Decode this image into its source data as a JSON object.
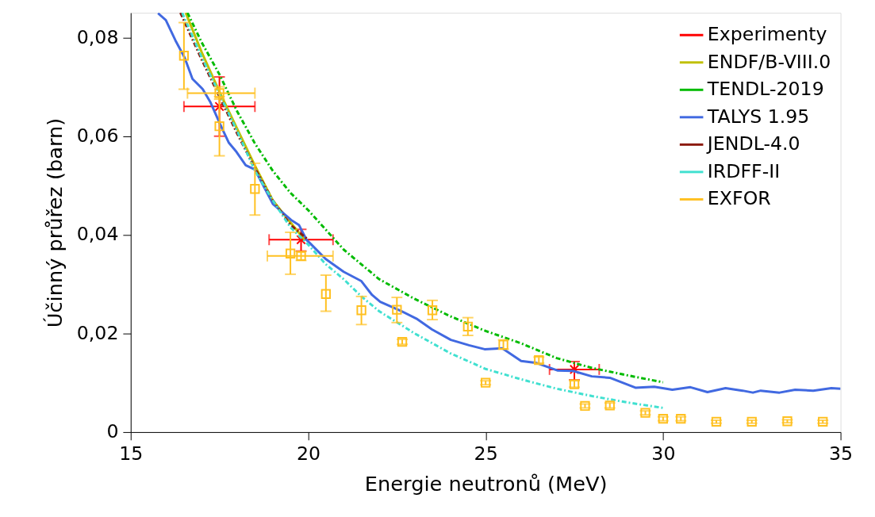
{
  "chart_data": {
    "type": "line",
    "xlabel": "Energie neutronů (MeV)",
    "ylabel": "Účinný průřez (barn)",
    "xlim": [
      15,
      35
    ],
    "ylim": [
      0,
      0.085
    ],
    "xticks": [
      15,
      20,
      25,
      30,
      35
    ],
    "yticks": [
      0,
      {
        "value": 0.02,
        "label": "0,02"
      },
      {
        "value": 0.04,
        "label": "0,04"
      },
      {
        "value": 0.06,
        "label": "0,06"
      },
      {
        "value": 0.08,
        "label": "0,08"
      }
    ],
    "legend": "top right",
    "series": [
      {
        "name": "Experimenty",
        "type": "scatter",
        "marker": "cross",
        "color": "#ff0000",
        "x": [
          17.5,
          19.8,
          27.5
        ],
        "values": [
          0.066,
          0.039,
          0.0127
        ],
        "errors": [
          [
            0.06,
            0.072
          ],
          [
            0.0367,
            0.0411
          ],
          [
            0.0106,
            0.0143
          ]
        ],
        "xerrors": [
          [
            16.5,
            18.5
          ],
          [
            18.9,
            20.7
          ],
          [
            26.8,
            28.2
          ]
        ]
      },
      {
        "name": "ENDF/B-VIII.0",
        "line_style": "solid",
        "color": "#c0c000",
        "x": [
          16.55,
          17,
          17.5,
          18,
          18.5,
          19,
          19.5,
          19.9
        ],
        "values": [
          0.085,
          0.077,
          0.069,
          0.0615,
          0.054,
          0.047,
          0.0425,
          0.039
        ]
      },
      {
        "name": "TENDL-2019",
        "line_style": "dashed",
        "color": "#00bb00",
        "x": [
          16.6,
          17,
          17.5,
          18,
          18.5,
          19,
          19.5,
          20,
          21,
          22,
          23,
          24,
          25,
          26,
          27,
          28,
          29,
          30
        ],
        "values": [
          0.085,
          0.079,
          0.0725,
          0.065,
          0.0585,
          0.053,
          0.0485,
          0.045,
          0.037,
          0.031,
          0.027,
          0.0235,
          0.0205,
          0.018,
          0.015,
          0.013,
          0.0115,
          0.0101
        ]
      },
      {
        "name": "TALYS 1.95",
        "line_style": "solid",
        "color": "#4169e1",
        "x": [
          15.77,
          15.99,
          16.26,
          16.52,
          16.74,
          17.03,
          17.25,
          17.54,
          17.76,
          17.98,
          18.24,
          18.5,
          19.01,
          19.52,
          19.74,
          19.96,
          20.05,
          20.49,
          21,
          21.5,
          21.8,
          22.03,
          22.6,
          23.05,
          23.49,
          24.02,
          24.53,
          24.97,
          25.47,
          26,
          26.44,
          27.02,
          27.46,
          27.99,
          28.5,
          29.22,
          29.75,
          30.26,
          30.77,
          31.25,
          31.76,
          32.24,
          32.53,
          32.75,
          33.28,
          33.72,
          34.23,
          34.74,
          35
        ],
        "values": [
          0.0849,
          0.0835,
          0.0794,
          0.0759,
          0.0716,
          0.0695,
          0.0668,
          0.0621,
          0.0587,
          0.0568,
          0.0541,
          0.0532,
          0.0462,
          0.043,
          0.042,
          0.0389,
          0.0383,
          0.0351,
          0.0325,
          0.0306,
          0.0278,
          0.0264,
          0.0246,
          0.023,
          0.0208,
          0.0187,
          0.0176,
          0.0168,
          0.017,
          0.0144,
          0.014,
          0.0125,
          0.0124,
          0.0113,
          0.011,
          0.009,
          0.0092,
          0.0086,
          0.0091,
          0.0081,
          0.0089,
          0.0084,
          0.008,
          0.0084,
          0.008,
          0.0086,
          0.0084,
          0.0089,
          0.0088
        ]
      },
      {
        "name": "JENDL-4.0",
        "line_style": "dashed",
        "color": "#8b1a0e",
        "x": [
          16.4,
          17,
          17.5,
          18,
          18.5,
          19,
          19.5,
          20
        ],
        "values": [
          0.085,
          0.0755,
          0.068,
          0.0605,
          0.0535,
          0.047,
          0.042,
          0.039
        ]
      },
      {
        "name": "IRDFF-II",
        "line_style": "dashed",
        "color": "#40e0d0",
        "x": [
          16.45,
          17,
          17.5,
          18,
          18.5,
          19,
          19.5,
          20,
          20.5,
          21,
          21.5,
          22,
          23,
          24,
          25,
          26,
          27,
          28,
          29,
          30
        ],
        "values": [
          0.085,
          0.076,
          0.0685,
          0.061,
          0.053,
          0.047,
          0.0415,
          0.038,
          0.034,
          0.031,
          0.0275,
          0.0245,
          0.02,
          0.016,
          0.0128,
          0.0107,
          0.0088,
          0.0073,
          0.006,
          0.0049
        ]
      },
      {
        "name": "EXFOR",
        "type": "scatter",
        "marker": "square",
        "color": "#ffc020",
        "x": [
          16.5,
          17.5,
          17.5,
          18.5,
          19.5,
          19.8,
          20.5,
          21.5,
          22.5,
          22.65,
          23.5,
          24.5,
          25.0,
          25.5,
          26.5,
          27.5,
          27.8,
          28.5,
          29.5,
          30.0,
          30.5,
          31.5,
          32.5,
          33.5,
          34.5
        ],
        "values": [
          0.0763,
          0.0687,
          0.062,
          0.0493,
          0.0362,
          0.0357,
          0.028,
          0.0247,
          0.0248,
          0.0183,
          0.0247,
          0.0214,
          0.01,
          0.0177,
          0.0146,
          0.0097,
          0.0053,
          0.0054,
          0.0039,
          0.0027,
          0.0027,
          0.0021,
          0.0021,
          0.0022,
          0.0021
        ],
        "errors": [
          [
            0.0695,
            0.083
          ],
          [
            0.0675,
            0.07
          ],
          [
            0.056,
            0.068
          ],
          [
            0.044,
            0.0545
          ],
          [
            0.032,
            0.0405
          ],
          [
            0.0348,
            0.0366
          ],
          [
            0.0245,
            0.0318
          ],
          [
            0.0218,
            0.0275
          ],
          [
            0.0222,
            0.0273
          ],
          [
            0.0178,
            0.0188
          ],
          [
            0.0228,
            0.0267
          ],
          [
            0.0196,
            0.0232
          ],
          [
            0.0096,
            0.0104
          ],
          [
            0.0168,
            0.0187
          ],
          [
            0.014,
            0.0152
          ],
          [
            0.0091,
            0.0104
          ],
          [
            0.0049,
            0.0057
          ],
          [
            0.0049,
            0.0059
          ],
          [
            0.0035,
            0.0043
          ],
          [
            0.0023,
            0.0031
          ],
          [
            0.0023,
            0.0031
          ],
          [
            0.0018,
            0.0024
          ],
          [
            0.0018,
            0.0024
          ],
          [
            0.0019,
            0.0025
          ],
          [
            0.0018,
            0.0024
          ]
        ],
        "xerrors": [
          null,
          [
            16.6,
            18.5
          ],
          null,
          null,
          null,
          [
            18.85,
            20.7
          ],
          null,
          null,
          null,
          null,
          null,
          null,
          null,
          null,
          null,
          null,
          null,
          null,
          null,
          null,
          null,
          null,
          null,
          null,
          null
        ]
      }
    ]
  }
}
